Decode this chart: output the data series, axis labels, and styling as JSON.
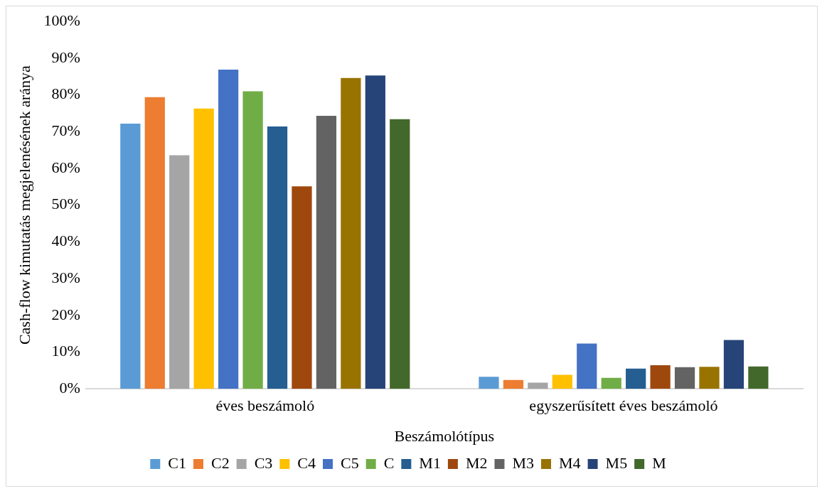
{
  "chart_data": {
    "type": "bar",
    "xlabel": "Beszámolótípus",
    "ylabel": "Cash-flow kimutatás megjelenésének aránya",
    "categories": [
      "éves beszámoló",
      "egyszerűsített éves beszámoló"
    ],
    "series": [
      {
        "name": "C1",
        "color": "#5b9bd5",
        "values": [
          72.2,
          3.3
        ]
      },
      {
        "name": "C2",
        "color": "#ed7d31",
        "values": [
          79.4,
          2.4
        ]
      },
      {
        "name": "C3",
        "color": "#a5a5a5",
        "values": [
          63.6,
          1.7
        ]
      },
      {
        "name": "C4",
        "color": "#ffc000",
        "values": [
          76.3,
          3.8
        ]
      },
      {
        "name": "C5",
        "color": "#4472c4",
        "values": [
          86.9,
          12.3
        ]
      },
      {
        "name": "C",
        "color": "#70ad47",
        "values": [
          81.0,
          3.0
        ]
      },
      {
        "name": "M1",
        "color": "#255e91",
        "values": [
          71.4,
          5.5
        ]
      },
      {
        "name": "M2",
        "color": "#9e480e",
        "values": [
          55.1,
          6.4
        ]
      },
      {
        "name": "M3",
        "color": "#636363",
        "values": [
          74.3,
          5.9
        ]
      },
      {
        "name": "M4",
        "color": "#997300",
        "values": [
          84.6,
          6.0
        ]
      },
      {
        "name": "M5",
        "color": "#264478",
        "values": [
          85.3,
          13.3
        ]
      },
      {
        "name": "M",
        "color": "#43682b",
        "values": [
          73.4,
          6.1
        ]
      }
    ],
    "ylim": [
      0,
      100
    ],
    "yticks": [
      {
        "value": 0,
        "label": "0%"
      },
      {
        "value": 10,
        "label": "10%"
      },
      {
        "value": 20,
        "label": "20%"
      },
      {
        "value": 30,
        "label": "30%"
      },
      {
        "value": 40,
        "label": "40%"
      },
      {
        "value": 50,
        "label": "50%"
      },
      {
        "value": 60,
        "label": "60%"
      },
      {
        "value": 70,
        "label": "70%"
      },
      {
        "value": 80,
        "label": "80%"
      },
      {
        "value": 90,
        "label": "90%"
      },
      {
        "value": 100,
        "label": "100%"
      }
    ],
    "grid": false,
    "legend": "bottom"
  }
}
